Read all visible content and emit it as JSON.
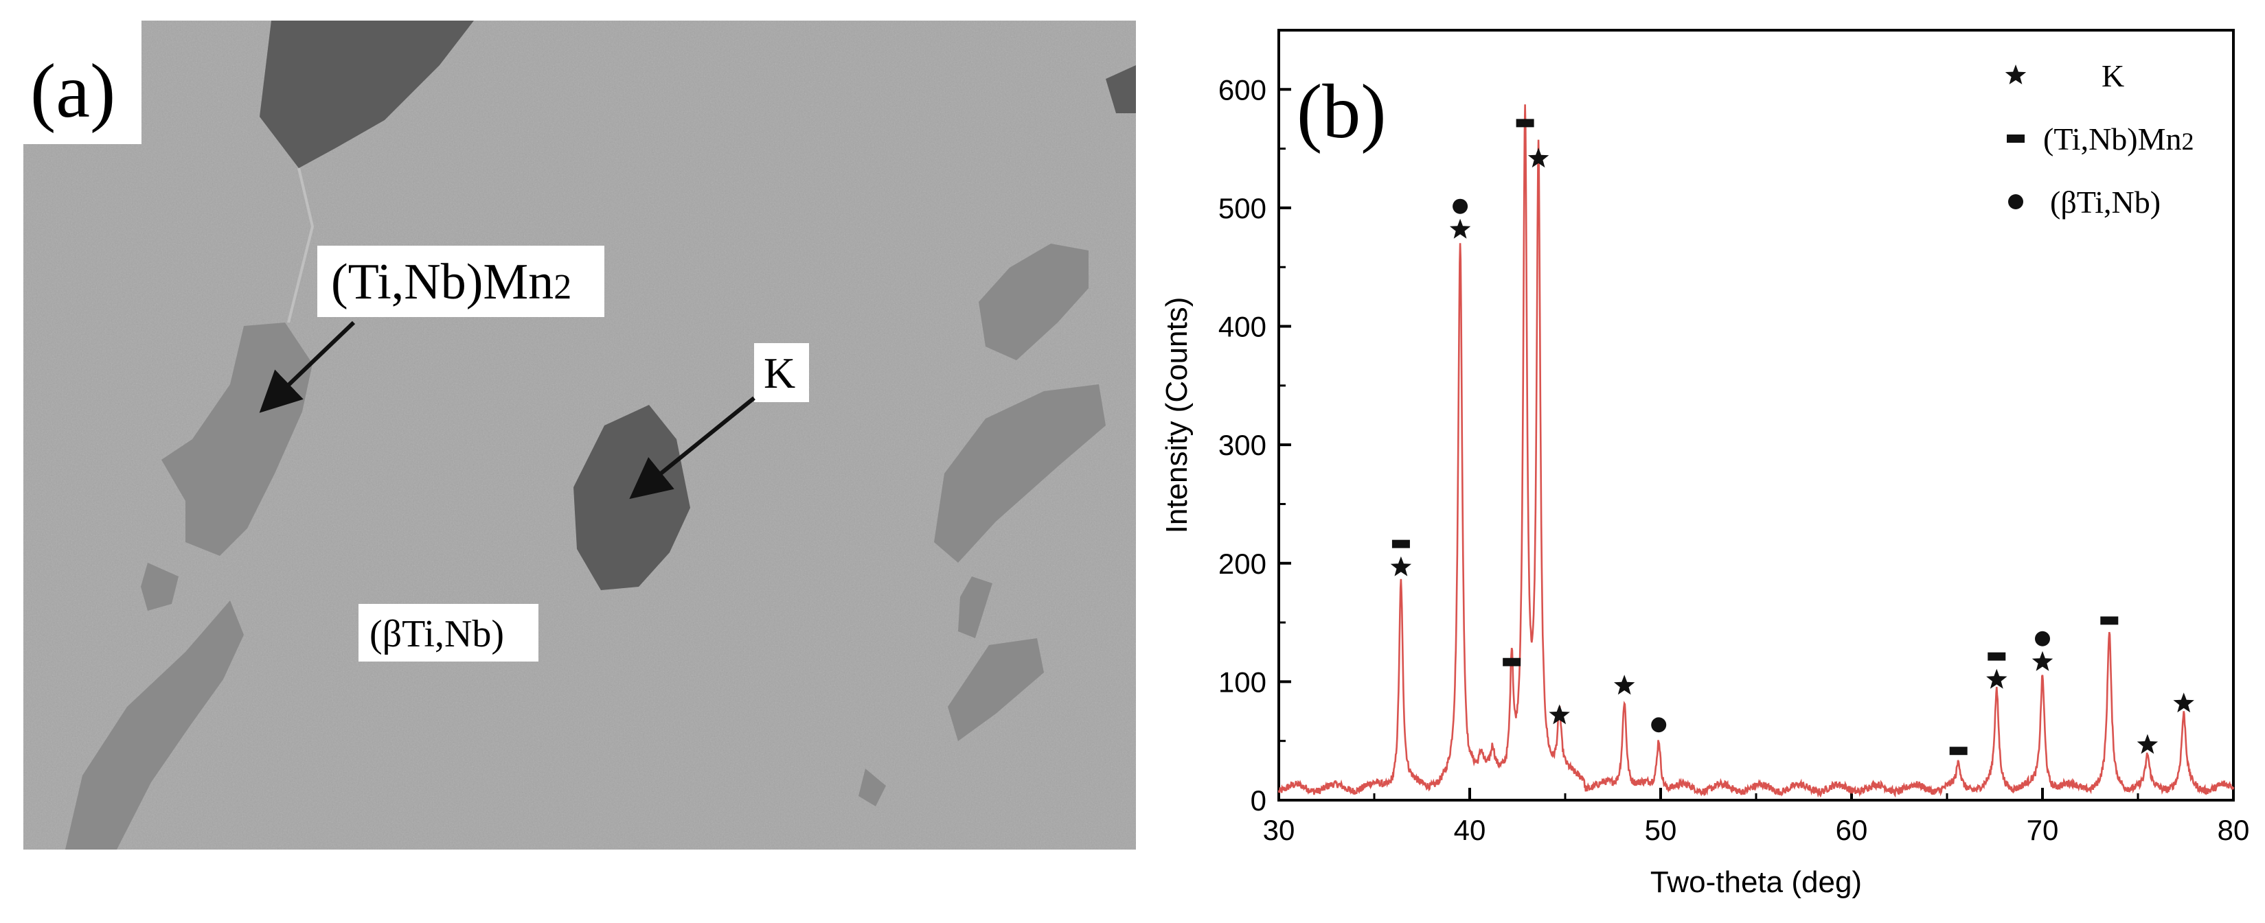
{
  "panel_a": {
    "label": "(a)",
    "annotations": {
      "laves": "(Ti,Nb)Mn",
      "laves_sub": "2",
      "k": "K",
      "matrix": "(βTi,Nb)"
    }
  },
  "panel_b": {
    "label": "(b)"
  },
  "chart_data": {
    "type": "line",
    "xlabel": "Two-theta (deg)",
    "ylabel": "Intensity (Counts)",
    "xlim": [
      30,
      80
    ],
    "ylim": [
      0,
      650
    ],
    "xticks": [
      30,
      40,
      50,
      60,
      70,
      80
    ],
    "yticks": [
      0,
      100,
      200,
      300,
      400,
      500,
      600
    ],
    "grid": false,
    "legend_position": "top-right",
    "line_color": "#d9534f",
    "baseline": 10,
    "peaks": [
      {
        "x": 36.4,
        "y": 185,
        "width": 0.12
      },
      {
        "x": 39.5,
        "y": 470,
        "width": 0.13
      },
      {
        "x": 40.6,
        "y": 25,
        "width": 0.12
      },
      {
        "x": 41.2,
        "y": 28,
        "width": 0.12
      },
      {
        "x": 42.2,
        "y": 105,
        "width": 0.1
      },
      {
        "x": 42.9,
        "y": 560,
        "width": 0.12
      },
      {
        "x": 43.6,
        "y": 530,
        "width": 0.12
      },
      {
        "x": 44.7,
        "y": 60,
        "width": 0.12
      },
      {
        "x": 48.1,
        "y": 85,
        "width": 0.13
      },
      {
        "x": 49.9,
        "y": 52,
        "width": 0.12
      },
      {
        "x": 65.6,
        "y": 30,
        "width": 0.12
      },
      {
        "x": 67.6,
        "y": 90,
        "width": 0.13
      },
      {
        "x": 70.0,
        "y": 105,
        "width": 0.13
      },
      {
        "x": 73.5,
        "y": 140,
        "width": 0.13
      },
      {
        "x": 75.5,
        "y": 35,
        "width": 0.12
      },
      {
        "x": 77.4,
        "y": 70,
        "width": 0.14
      }
    ],
    "series": [
      {
        "name": "K",
        "marker": "star"
      },
      {
        "name": "(Ti,Nb)Mn2",
        "marker": "dash"
      },
      {
        "name": "(βTi,Nb)",
        "marker": "circle"
      }
    ],
    "peak_markers": [
      {
        "x": 36.4,
        "y": 185,
        "markers": [
          "star",
          "dash"
        ]
      },
      {
        "x": 39.5,
        "y": 470,
        "markers": [
          "star",
          "circle"
        ]
      },
      {
        "x": 42.2,
        "y": 105,
        "markers": [
          "dash"
        ]
      },
      {
        "x": 42.9,
        "y": 560,
        "markers": [
          "dash"
        ]
      },
      {
        "x": 43.6,
        "y": 530,
        "markers": [
          "star"
        ]
      },
      {
        "x": 44.7,
        "y": 60,
        "markers": [
          "star"
        ]
      },
      {
        "x": 48.1,
        "y": 85,
        "markers": [
          "star"
        ]
      },
      {
        "x": 49.9,
        "y": 52,
        "markers": [
          "circle"
        ]
      },
      {
        "x": 65.6,
        "y": 30,
        "markers": [
          "dash"
        ]
      },
      {
        "x": 67.6,
        "y": 90,
        "markers": [
          "star",
          "dash"
        ]
      },
      {
        "x": 70.0,
        "y": 105,
        "markers": [
          "star",
          "circle"
        ]
      },
      {
        "x": 73.5,
        "y": 140,
        "markers": [
          "dash"
        ]
      },
      {
        "x": 75.5,
        "y": 35,
        "markers": [
          "star"
        ]
      },
      {
        "x": 77.4,
        "y": 70,
        "markers": [
          "star"
        ]
      }
    ]
  }
}
